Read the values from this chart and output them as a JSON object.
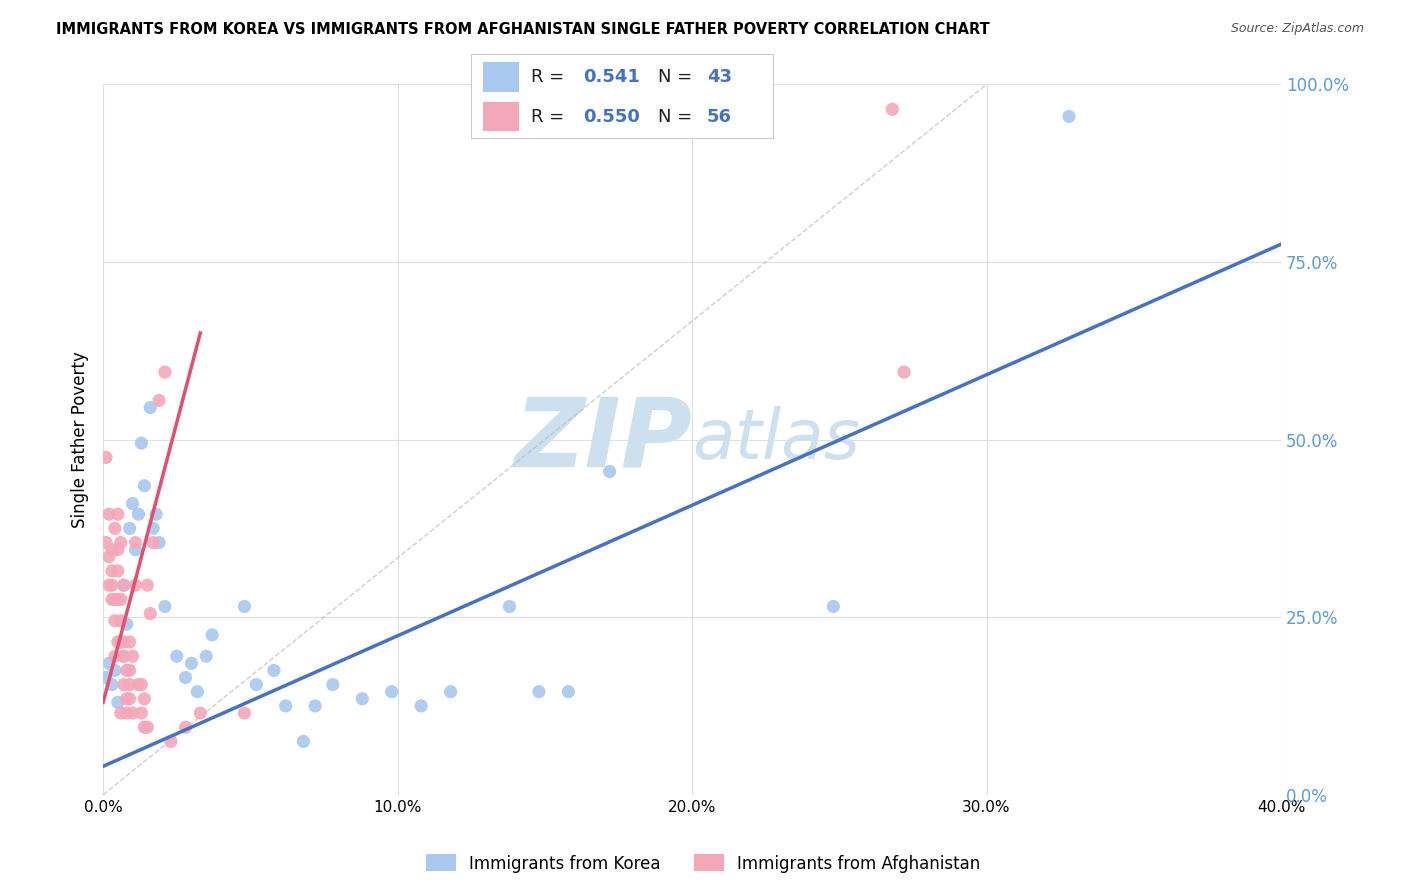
{
  "title": "IMMIGRANTS FROM KOREA VS IMMIGRANTS FROM AFGHANISTAN SINGLE FATHER POVERTY CORRELATION CHART",
  "source": "Source: ZipAtlas.com",
  "ylabel": "Single Father Poverty",
  "x_tick_labels": [
    "0.0%",
    "10.0%",
    "20.0%",
    "30.0%",
    "40.0%"
  ],
  "x_tick_positions": [
    0.0,
    0.1,
    0.2,
    0.3,
    0.4
  ],
  "y_tick_labels": [
    "0.0%",
    "25.0%",
    "50.0%",
    "75.0%",
    "100.0%"
  ],
  "y_tick_positions": [
    0.0,
    0.25,
    0.5,
    0.75,
    1.0
  ],
  "xlim": [
    0.0,
    0.4
  ],
  "ylim": [
    0.0,
    1.0
  ],
  "korea_color": "#a8c8f0",
  "korea_line_color": "#4472c4",
  "afghanistan_color": "#f4a7b9",
  "afghanistan_line_color": "#e05070",
  "watermark_zip": "ZIP",
  "watermark_atlas": "atlas",
  "watermark_color_zip": "#c8dff0",
  "watermark_color_atlas": "#c8dff0",
  "background_color": "#ffffff",
  "grid_color": "#e0e0e0",
  "right_axis_label_color": "#5b9bd5",
  "korea_scatter": [
    [
      0.001,
      0.165
    ],
    [
      0.002,
      0.185
    ],
    [
      0.003,
      0.155
    ],
    [
      0.004,
      0.175
    ],
    [
      0.005,
      0.13
    ],
    [
      0.006,
      0.215
    ],
    [
      0.007,
      0.195
    ],
    [
      0.007,
      0.295
    ],
    [
      0.008,
      0.24
    ],
    [
      0.009,
      0.375
    ],
    [
      0.01,
      0.41
    ],
    [
      0.011,
      0.345
    ],
    [
      0.012,
      0.395
    ],
    [
      0.013,
      0.495
    ],
    [
      0.014,
      0.435
    ],
    [
      0.016,
      0.545
    ],
    [
      0.017,
      0.375
    ],
    [
      0.018,
      0.395
    ],
    [
      0.019,
      0.355
    ],
    [
      0.021,
      0.265
    ],
    [
      0.025,
      0.195
    ],
    [
      0.028,
      0.165
    ],
    [
      0.03,
      0.185
    ],
    [
      0.032,
      0.145
    ],
    [
      0.035,
      0.195
    ],
    [
      0.037,
      0.225
    ],
    [
      0.048,
      0.265
    ],
    [
      0.052,
      0.155
    ],
    [
      0.058,
      0.175
    ],
    [
      0.062,
      0.125
    ],
    [
      0.068,
      0.075
    ],
    [
      0.072,
      0.125
    ],
    [
      0.078,
      0.155
    ],
    [
      0.088,
      0.135
    ],
    [
      0.098,
      0.145
    ],
    [
      0.108,
      0.125
    ],
    [
      0.118,
      0.145
    ],
    [
      0.138,
      0.265
    ],
    [
      0.148,
      0.145
    ],
    [
      0.158,
      0.145
    ],
    [
      0.172,
      0.455
    ],
    [
      0.248,
      0.265
    ],
    [
      0.328,
      0.955
    ]
  ],
  "afghanistan_scatter": [
    [
      0.001,
      0.475
    ],
    [
      0.001,
      0.355
    ],
    [
      0.002,
      0.295
    ],
    [
      0.002,
      0.395
    ],
    [
      0.002,
      0.335
    ],
    [
      0.003,
      0.345
    ],
    [
      0.003,
      0.295
    ],
    [
      0.003,
      0.275
    ],
    [
      0.003,
      0.315
    ],
    [
      0.004,
      0.275
    ],
    [
      0.004,
      0.245
    ],
    [
      0.004,
      0.195
    ],
    [
      0.004,
      0.375
    ],
    [
      0.005,
      0.315
    ],
    [
      0.005,
      0.275
    ],
    [
      0.005,
      0.215
    ],
    [
      0.005,
      0.395
    ],
    [
      0.005,
      0.345
    ],
    [
      0.006,
      0.275
    ],
    [
      0.006,
      0.355
    ],
    [
      0.006,
      0.215
    ],
    [
      0.006,
      0.245
    ],
    [
      0.006,
      0.115
    ],
    [
      0.007,
      0.295
    ],
    [
      0.007,
      0.215
    ],
    [
      0.007,
      0.155
    ],
    [
      0.007,
      0.195
    ],
    [
      0.008,
      0.135
    ],
    [
      0.008,
      0.175
    ],
    [
      0.008,
      0.115
    ],
    [
      0.009,
      0.175
    ],
    [
      0.009,
      0.135
    ],
    [
      0.009,
      0.215
    ],
    [
      0.009,
      0.155
    ],
    [
      0.01,
      0.195
    ],
    [
      0.01,
      0.115
    ],
    [
      0.011,
      0.355
    ],
    [
      0.011,
      0.295
    ],
    [
      0.012,
      0.155
    ],
    [
      0.013,
      0.115
    ],
    [
      0.013,
      0.155
    ],
    [
      0.014,
      0.095
    ],
    [
      0.014,
      0.135
    ],
    [
      0.015,
      0.095
    ],
    [
      0.015,
      0.295
    ],
    [
      0.016,
      0.255
    ],
    [
      0.017,
      0.355
    ],
    [
      0.019,
      0.555
    ],
    [
      0.021,
      0.595
    ],
    [
      0.023,
      0.075
    ],
    [
      0.028,
      0.095
    ],
    [
      0.033,
      0.115
    ],
    [
      0.048,
      0.115
    ],
    [
      0.268,
      0.965
    ],
    [
      0.272,
      0.595
    ]
  ],
  "korea_line_x": [
    0.0,
    0.4
  ],
  "korea_line_y": [
    0.04,
    0.775
  ],
  "afghanistan_line_x": [
    0.0,
    0.033
  ],
  "afghanistan_line_y": [
    0.13,
    0.65
  ],
  "dashed_line_x": [
    0.0,
    0.3
  ],
  "dashed_line_y": [
    0.0,
    1.0
  ]
}
